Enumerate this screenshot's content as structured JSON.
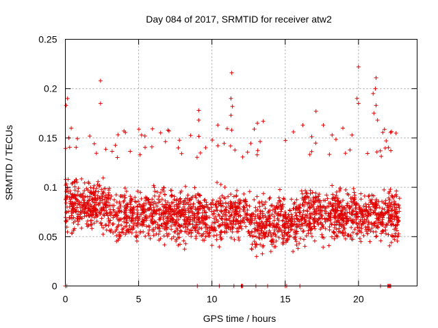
{
  "chart_data": {
    "type": "scatter",
    "title": "Day 084 of 2017, SRMTID for receiver atw2",
    "xlabel": "GPS time / hours",
    "ylabel": "SRMTID / TECUs",
    "xlim": [
      0,
      24
    ],
    "ylim": [
      0,
      0.25
    ],
    "xticks": [
      0,
      5,
      10,
      15,
      20
    ],
    "xtick_labels": [
      "0",
      "5",
      "10",
      "15",
      "20"
    ],
    "yticks": [
      0,
      0.05,
      0.1,
      0.15,
      0.2,
      0.25
    ],
    "ytick_labels": [
      "0",
      "0.05",
      "0.1",
      "0.15",
      "0.2",
      "0.25"
    ],
    "grid": true,
    "marker": "plus",
    "series_color": "#e00000",
    "data_extent_hours": [
      0,
      22.8
    ],
    "bulk_range": [
      0.02,
      0.14
    ],
    "outliers": [
      {
        "x": 0.05,
        "y": 0.183
      },
      {
        "x": 0.15,
        "y": 0.19
      },
      {
        "x": 0.4,
        "y": 0.16
      },
      {
        "x": 2.4,
        "y": 0.208
      },
      {
        "x": 2.4,
        "y": 0.185
      },
      {
        "x": 4.0,
        "y": 0.157
      },
      {
        "x": 5.2,
        "y": 0.153
      },
      {
        "x": 7.0,
        "y": 0.158
      },
      {
        "x": 9.1,
        "y": 0.178
      },
      {
        "x": 9.1,
        "y": 0.168
      },
      {
        "x": 10.4,
        "y": 0.163
      },
      {
        "x": 11.35,
        "y": 0.216
      },
      {
        "x": 11.3,
        "y": 0.19
      },
      {
        "x": 11.4,
        "y": 0.182
      },
      {
        "x": 11.3,
        "y": 0.173
      },
      {
        "x": 11.35,
        "y": 0.158
      },
      {
        "x": 13.1,
        "y": 0.165
      },
      {
        "x": 13.5,
        "y": 0.167
      },
      {
        "x": 16.2,
        "y": 0.163
      },
      {
        "x": 17.1,
        "y": 0.177
      },
      {
        "x": 17.6,
        "y": 0.163
      },
      {
        "x": 18.2,
        "y": 0.153
      },
      {
        "x": 20.0,
        "y": 0.222
      },
      {
        "x": 19.9,
        "y": 0.19
      },
      {
        "x": 20.0,
        "y": 0.185
      },
      {
        "x": 21.0,
        "y": 0.195
      },
      {
        "x": 21.2,
        "y": 0.211
      },
      {
        "x": 21.15,
        "y": 0.2
      },
      {
        "x": 21.3,
        "y": 0.168
      },
      {
        "x": 21.05,
        "y": 0.175
      },
      {
        "x": 21.2,
        "y": 0.183
      }
    ],
    "zeros_x": [
      0.0,
      0.1,
      9.0,
      10.5,
      11.5,
      12.0,
      12.05,
      12.1,
      13.0,
      13.8,
      15.0,
      15.1,
      16.0,
      21.5,
      22.0,
      22.05,
      22.1,
      22.15,
      22.2
    ]
  }
}
